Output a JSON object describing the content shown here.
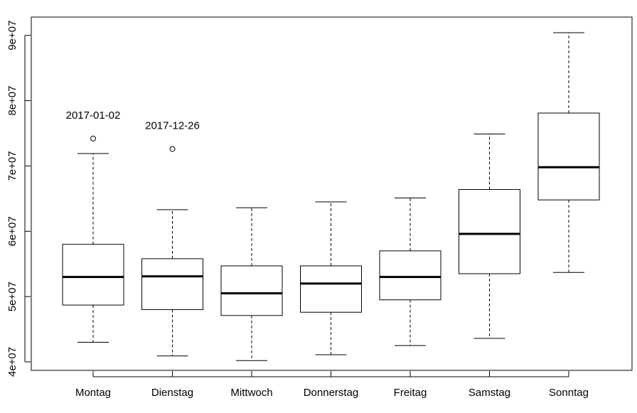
{
  "chart_data": {
    "type": "box",
    "categories": [
      "Montag",
      "Dienstag",
      "Mittwoch",
      "Donnerstag",
      "Freitag",
      "Samstag",
      "Sonntag"
    ],
    "boxes": [
      {
        "name": "Montag",
        "whisker_low": 43000000,
        "q1": 48700000,
        "median": 53000000,
        "q3": 58000000,
        "whisker_high": 71900000,
        "outliers": [
          {
            "value": 74200000,
            "label": "2017-01-02"
          }
        ]
      },
      {
        "name": "Dienstag",
        "whisker_low": 40900000,
        "q1": 48000000,
        "median": 53100000,
        "q3": 55800000,
        "whisker_high": 63300000,
        "outliers": [
          {
            "value": 72600000,
            "label": "2017-12-26"
          }
        ]
      },
      {
        "name": "Mittwoch",
        "whisker_low": 40200000,
        "q1": 47100000,
        "median": 50500000,
        "q3": 54700000,
        "whisker_high": 63600000,
        "outliers": []
      },
      {
        "name": "Donnerstag",
        "whisker_low": 41100000,
        "q1": 47600000,
        "median": 52000000,
        "q3": 54700000,
        "whisker_high": 64500000,
        "outliers": []
      },
      {
        "name": "Freitag",
        "whisker_low": 42500000,
        "q1": 49500000,
        "median": 53000000,
        "q3": 57000000,
        "whisker_high": 65100000,
        "outliers": []
      },
      {
        "name": "Samstag",
        "whisker_low": 43600000,
        "q1": 53500000,
        "median": 59600000,
        "q3": 66400000,
        "whisker_high": 74900000,
        "outliers": []
      },
      {
        "name": "Sonntag",
        "whisker_low": 53700000,
        "q1": 64800000,
        "median": 69800000,
        "q3": 78100000,
        "whisker_high": 90400000,
        "outliers": []
      }
    ],
    "y_ticks": [
      40000000,
      50000000,
      60000000,
      70000000,
      80000000,
      90000000
    ],
    "y_tick_labels": [
      "4e+07",
      "5e+07",
      "6e+07",
      "7e+07",
      "8e+07",
      "9e+07"
    ],
    "ylim": [
      38700000,
      92800000
    ],
    "title": "",
    "xlabel": "",
    "ylabel": "",
    "grid": false,
    "colors": {
      "stroke": "#000000",
      "background": "#ffffff"
    }
  }
}
